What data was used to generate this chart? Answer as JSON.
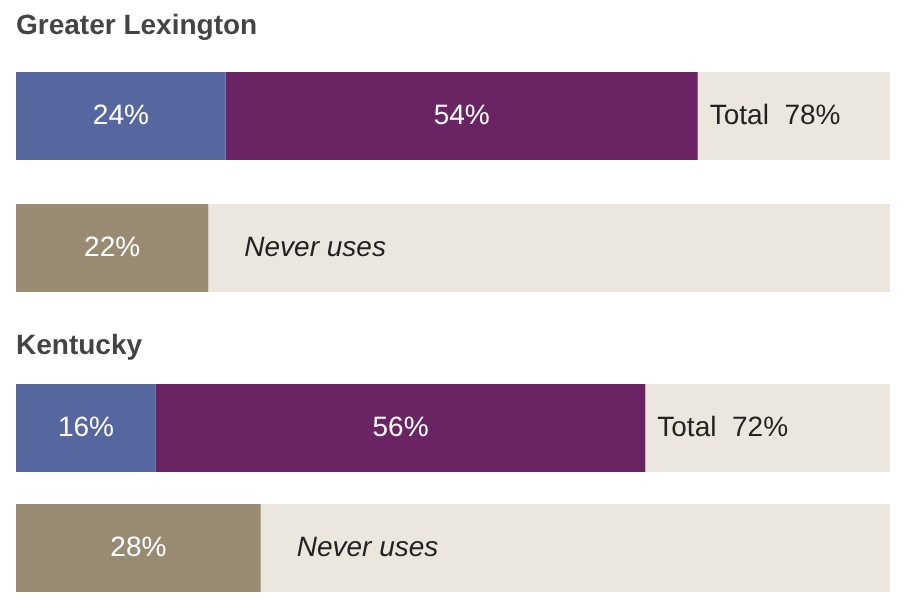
{
  "chart_data": [
    {
      "type": "bar",
      "title": "Greater Lexington",
      "orientation": "horizontal",
      "stacked": true,
      "categories": [
        null,
        null
      ],
      "xlim": [
        0,
        100
      ],
      "tick_labels": false,
      "series": [
        {
          "color": "#56679f",
          "values": [
            24,
            null
          ],
          "value_labels": [
            "24%",
            null
          ]
        },
        {
          "color": "#6a2363",
          "values": [
            54,
            null
          ],
          "value_labels": [
            "54%",
            null
          ]
        },
        {
          "color": "#998a72",
          "values": [
            null,
            22
          ],
          "value_labels": [
            null,
            "22%"
          ]
        },
        {
          "color": "#ebe7df",
          "values": [
            22,
            78
          ]
        }
      ],
      "annotations": [
        "Total  78%",
        "Never uses"
      ]
    },
    {
      "type": "bar",
      "title": "Kentucky",
      "orientation": "horizontal",
      "stacked": true,
      "categories": [
        null,
        null
      ],
      "xlim": [
        0,
        100
      ],
      "tick_labels": false,
      "series": [
        {
          "color": "#56679f",
          "values": [
            16,
            null
          ],
          "value_labels": [
            "16%",
            null
          ]
        },
        {
          "color": "#6a2363",
          "values": [
            56,
            null
          ],
          "value_labels": [
            "56%",
            null
          ]
        },
        {
          "color": "#998a72",
          "values": [
            null,
            28
          ],
          "value_labels": [
            null,
            "28%"
          ]
        },
        {
          "color": "#ebe7df",
          "values": [
            28,
            72
          ]
        }
      ],
      "annotations": [
        "Total  72%",
        "Never uses"
      ]
    }
  ]
}
